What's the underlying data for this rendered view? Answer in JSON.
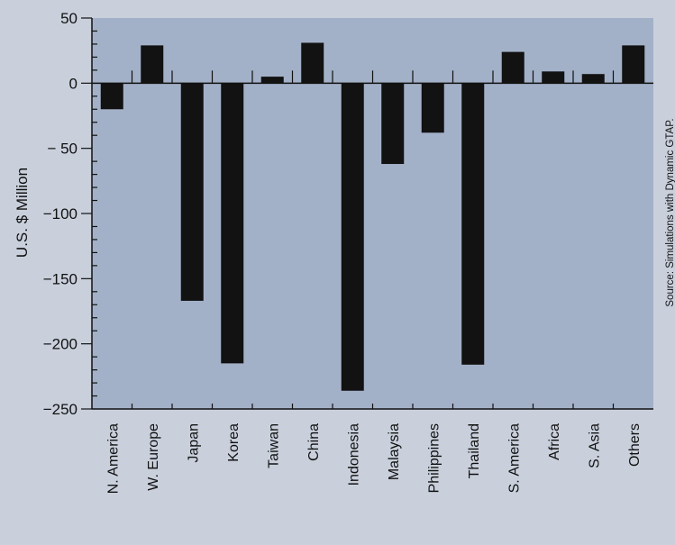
{
  "colors": {
    "background": "#c9d0dc",
    "plot_area": "#a3b1c8",
    "bar": "#121212",
    "axis": "#111111"
  },
  "chart_data": {
    "type": "bar",
    "title": "",
    "xlabel": "",
    "ylabel": "U.S. $ Million",
    "categories": [
      "N. America",
      "W. Europe",
      "Japan",
      "Korea",
      "Taiwan",
      "China",
      "Indonesia",
      "Malaysia",
      "Philippines",
      "Thailand",
      "S. America",
      "Africa",
      "S. Asia",
      "Others"
    ],
    "values": [
      -20,
      29,
      -167,
      -215,
      5,
      31,
      -236,
      -62,
      -38,
      -216,
      24,
      9,
      7,
      29
    ],
    "ylim": [
      -250,
      50
    ],
    "yticks": [
      50,
      0,
      -50,
      -100,
      -150,
      -200,
      -250
    ],
    "ytick_labels": [
      "50",
      "0",
      "− 50",
      "−100",
      "−150",
      "−200",
      "−250"
    ],
    "grid": false,
    "source_note": "Source: Simulations with Dynamic GTAP."
  }
}
